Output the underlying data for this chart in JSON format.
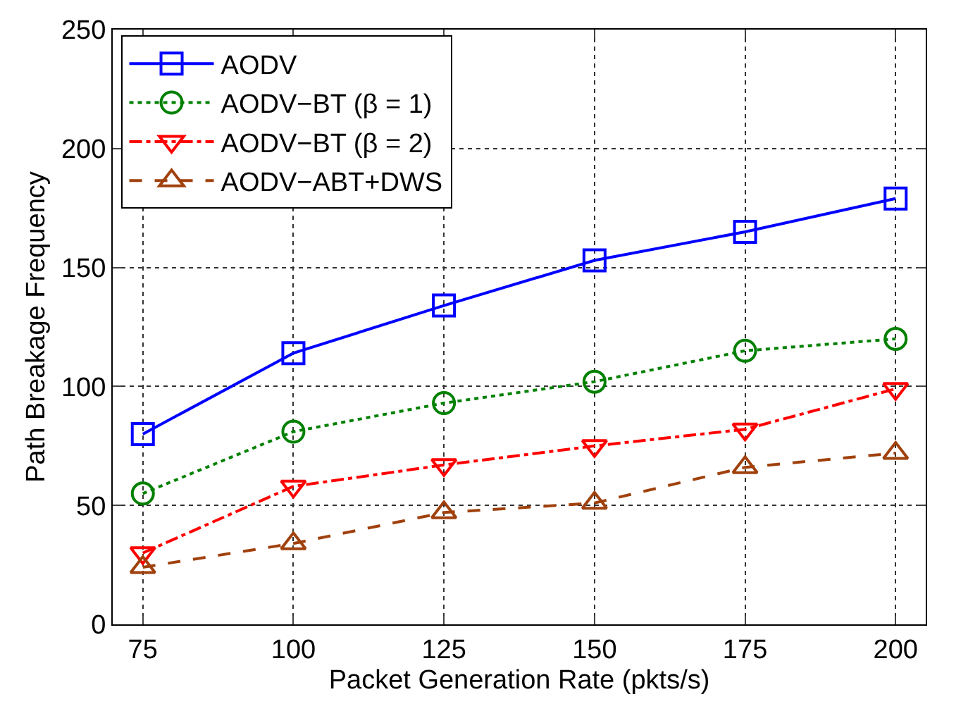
{
  "chart_data": {
    "type": "line",
    "xlabel": "Packet Generation Rate (pkts/s)",
    "ylabel": "Path Breakage Frequency",
    "x": [
      75,
      100,
      125,
      150,
      175,
      200
    ],
    "series": [
      {
        "name": "AODV",
        "color": "#0000ff",
        "values": [
          80,
          114,
          134,
          153,
          165,
          179
        ],
        "marker": "square",
        "line_style": "solid"
      },
      {
        "name": "AODV−BT (β = 1)",
        "color": "#008000",
        "values": [
          55,
          81,
          93,
          102,
          115,
          120
        ],
        "marker": "circle",
        "line_style": "dotted"
      },
      {
        "name": "AODV−BT (β = 2)",
        "color": "#ff0000",
        "values": [
          30,
          58,
          67,
          75,
          82,
          99
        ],
        "marker": "triangle-down",
        "line_style": "dashdot"
      },
      {
        "name": "AODV−ABT+DWS",
        "color": "#a0410d",
        "values": [
          24,
          34,
          47,
          51,
          66,
          72
        ],
        "marker": "triangle",
        "line_style": "dashed"
      }
    ],
    "xlim": [
      70,
      205
    ],
    "xticks": [
      75,
      100,
      125,
      150,
      175,
      200
    ],
    "ylim": [
      0,
      250
    ],
    "yticks": [
      0,
      50,
      100,
      150,
      200,
      250
    ],
    "grid": true,
    "legend": "top left"
  }
}
